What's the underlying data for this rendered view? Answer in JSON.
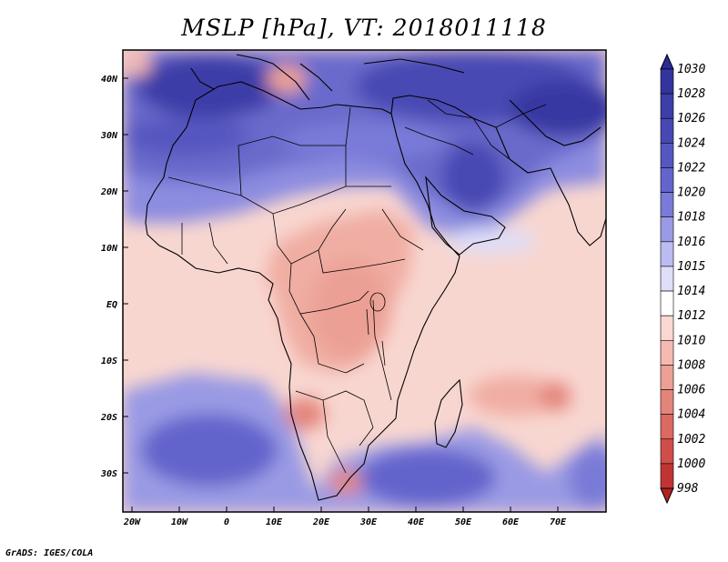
{
  "title": "MSLP [hPa], VT: 2018011118",
  "credit": "GrADS: IGES/COLA",
  "lat_ticks": [
    "40N",
    "30N",
    "20N",
    "10N",
    "EQ",
    "10S",
    "20S",
    "30S"
  ],
  "lon_ticks": [
    "20W",
    "10W",
    "0",
    "10E",
    "20E",
    "30E",
    "40E",
    "50E",
    "60E",
    "70E"
  ],
  "colorbar": {
    "labels": [
      "1030",
      "1028",
      "1026",
      "1024",
      "1022",
      "1020",
      "1018",
      "1016",
      "1015",
      "1014",
      "1012",
      "1010",
      "1008",
      "1006",
      "1004",
      "1002",
      "1000",
      "998"
    ],
    "colors": [
      "#2a2a9a",
      "#34349e",
      "#3e3ea8",
      "#4848b4",
      "#5656c0",
      "#6464cc",
      "#7a7ad8",
      "#9a9ae4",
      "#bcbcf0",
      "#dedef8",
      "#ffffff",
      "#fad7d2",
      "#f4bab1",
      "#eca095",
      "#e4857b",
      "#da6a62",
      "#cf4e49",
      "#c23434",
      "#b22222"
    ]
  }
}
